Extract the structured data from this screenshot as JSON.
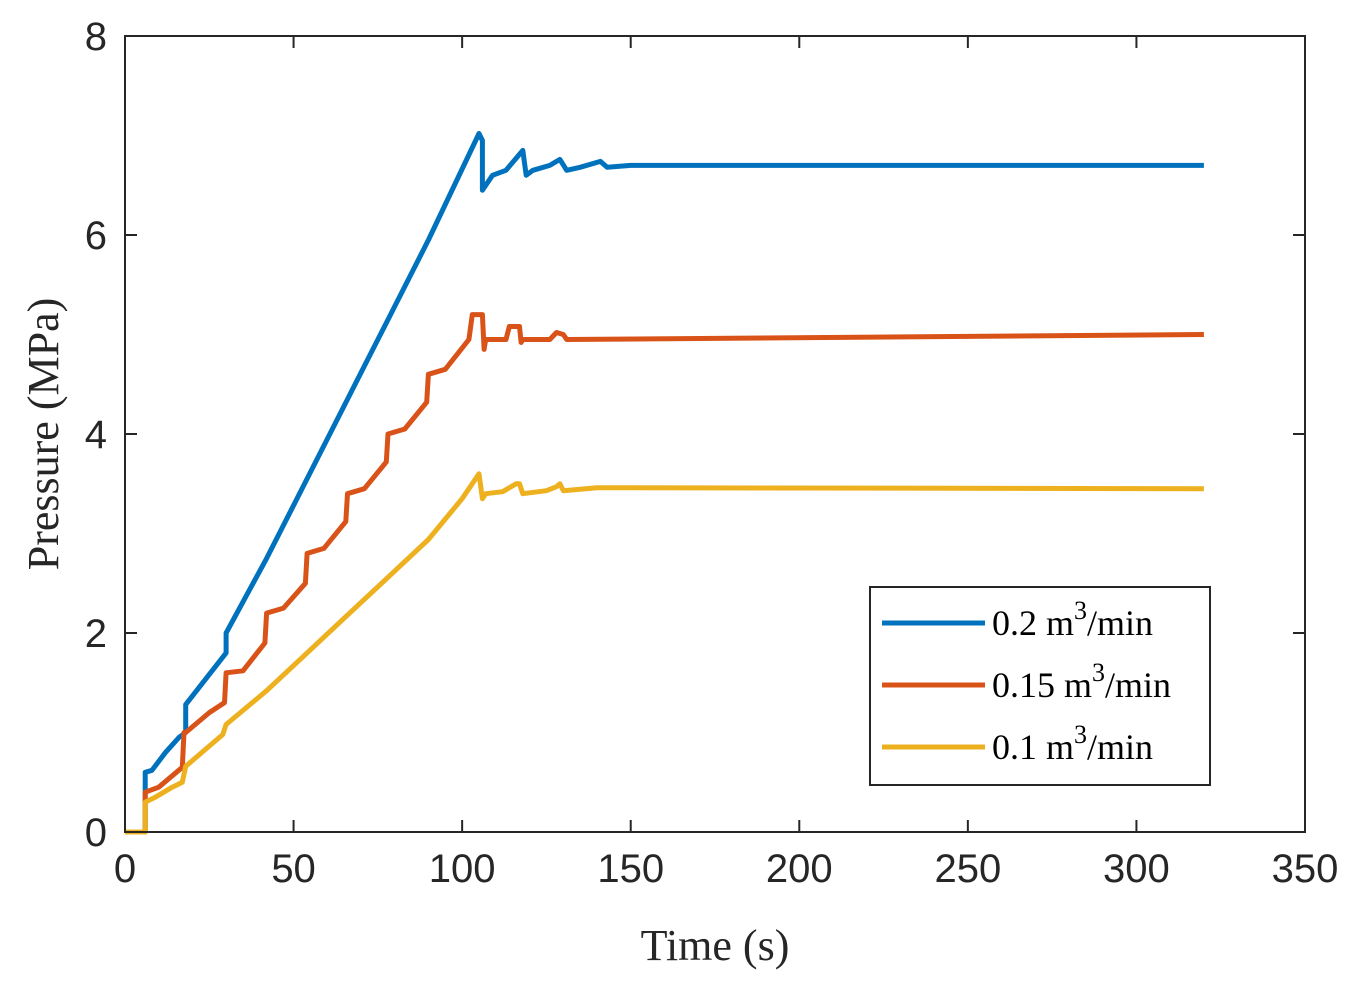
{
  "chart_data": {
    "type": "line",
    "xlabel": "Time (s)",
    "ylabel": "Pressure (MPa)",
    "xlim": [
      0,
      350
    ],
    "ylim": [
      0,
      8
    ],
    "xticks": [
      0,
      50,
      100,
      150,
      200,
      250,
      300,
      350
    ],
    "yticks": [
      0,
      2,
      4,
      6,
      8
    ],
    "grid": false,
    "legend_position": "bottom-right",
    "series": [
      {
        "name": "0.2 m³/min",
        "legend": {
          "base": "0.2 m",
          "sup": "3",
          "tail": "/min"
        },
        "color": "#0072BD",
        "x": [
          0,
          6,
          6,
          8,
          12,
          16,
          18,
          18,
          30,
          30,
          42,
          54,
          66,
          78,
          90,
          105,
          106,
          106,
          109,
          113,
          118,
          119,
          121,
          126,
          129,
          131,
          135,
          141,
          143,
          150,
          320
        ],
        "y": [
          0,
          0,
          0.6,
          0.62,
          0.8,
          0.95,
          1.0,
          1.28,
          1.8,
          2.0,
          2.75,
          3.55,
          4.35,
          5.15,
          5.95,
          7.02,
          6.95,
          6.45,
          6.6,
          6.65,
          6.85,
          6.6,
          6.65,
          6.7,
          6.76,
          6.65,
          6.68,
          6.74,
          6.68,
          6.7,
          6.7
        ]
      },
      {
        "name": "0.15 m³/min",
        "legend": {
          "base": "0.15 m",
          "sup": "3",
          "tail": "/min"
        },
        "color": "#D95319",
        "x": [
          0,
          6,
          6,
          10,
          17,
          17.5,
          18,
          25,
          29.5,
          30,
          35,
          41.5,
          42,
          47,
          53.5,
          54,
          59,
          65.5,
          66,
          71,
          77.5,
          78,
          83,
          89.5,
          90,
          95,
          102,
          103,
          106,
          106.5,
          107,
          111,
          113,
          114,
          117,
          117.5,
          118,
          126,
          128,
          130,
          131,
          320
        ],
        "y": [
          0,
          0,
          0.4,
          0.45,
          0.65,
          1.0,
          1.0,
          1.2,
          1.3,
          1.6,
          1.62,
          1.9,
          2.2,
          2.25,
          2.5,
          2.8,
          2.85,
          3.12,
          3.4,
          3.45,
          3.72,
          4.0,
          4.05,
          4.32,
          4.6,
          4.65,
          4.95,
          5.2,
          5.2,
          4.85,
          4.95,
          4.95,
          4.95,
          5.08,
          5.08,
          4.92,
          4.95,
          4.95,
          5.02,
          5.0,
          4.95,
          5.0
        ]
      },
      {
        "name": "0.1 m³/min",
        "legend": {
          "base": "0.1 m",
          "sup": "3",
          "tail": "/min"
        },
        "color": "#EDB120",
        "x": [
          0,
          6,
          6,
          9,
          14,
          17,
          18,
          29,
          30,
          42,
          54,
          66,
          78,
          90,
          100,
          105,
          106,
          107,
          112,
          116,
          117,
          118,
          125,
          128,
          129,
          130,
          140,
          320
        ],
        "y": [
          0,
          0,
          0.3,
          0.35,
          0.45,
          0.5,
          0.66,
          0.98,
          1.08,
          1.42,
          1.8,
          2.18,
          2.56,
          2.94,
          3.35,
          3.6,
          3.35,
          3.4,
          3.42,
          3.5,
          3.5,
          3.4,
          3.43,
          3.47,
          3.5,
          3.43,
          3.46,
          3.45
        ]
      }
    ]
  }
}
